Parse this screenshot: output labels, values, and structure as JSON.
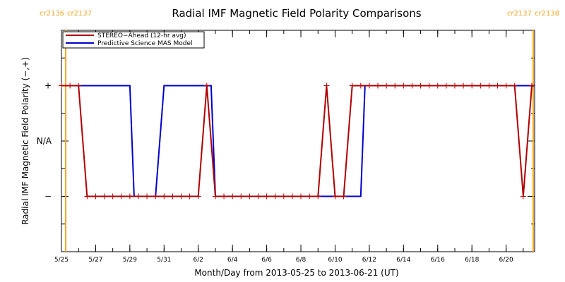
{
  "chart_data": {
    "type": "line",
    "title": "Radial IMF Magnetic Field Polarity Comparisons",
    "xlabel": "Month/Day from 2013-05-25 to 2013-06-21 (UT)",
    "ylabel": "Radial IMF Magnetic Field Polarity (−,+)",
    "xlim": [
      "2013-05-25",
      "2013-06-21T16:00"
    ],
    "ylim": [
      -2,
      2
    ],
    "x_ticks": [
      "5/25",
      "5/27",
      "5/29",
      "5/31",
      "6/2",
      "6/4",
      "6/6",
      "6/8",
      "6/10",
      "6/12",
      "6/14",
      "6/16",
      "6/18",
      "6/20"
    ],
    "y_ticks": [
      {
        "value": 1,
        "label": "+"
      },
      {
        "value": 0,
        "label": "N/A"
      },
      {
        "value": -1,
        "label": "−"
      }
    ],
    "legend": "top-left",
    "grid": false,
    "carrington_rotations": [
      {
        "date": "2013-05-25T06:00",
        "left_label": "cr2136",
        "right_label": "cr2137"
      },
      {
        "date": "2013-06-21T14:00",
        "left_label": "cr2137",
        "right_label": "cr2138"
      }
    ],
    "series": [
      {
        "name": "STEREO−Ahead (12-hr avg)",
        "color": "#b00000",
        "marker": "plus",
        "points": [
          [
            "2013-05-25T00:00",
            1
          ],
          [
            "2013-05-25T12:00",
            1
          ],
          [
            "2013-05-26T00:00",
            1
          ],
          [
            "2013-05-26T12:00",
            -1
          ],
          [
            "2013-05-27T00:00",
            -1
          ],
          [
            "2013-05-27T12:00",
            -1
          ],
          [
            "2013-05-28T00:00",
            -1
          ],
          [
            "2013-05-28T12:00",
            -1
          ],
          [
            "2013-05-29T00:00",
            -1
          ],
          [
            "2013-05-29T12:00",
            -1
          ],
          [
            "2013-05-30T00:00",
            -1
          ],
          [
            "2013-05-30T12:00",
            -1
          ],
          [
            "2013-05-31T00:00",
            -1
          ],
          [
            "2013-05-31T12:00",
            -1
          ],
          [
            "2013-06-01T00:00",
            -1
          ],
          [
            "2013-06-01T12:00",
            -1
          ],
          [
            "2013-06-02T00:00",
            -1
          ],
          [
            "2013-06-02T12:00",
            1
          ],
          [
            "2013-06-03T00:00",
            -1
          ],
          [
            "2013-06-03T12:00",
            -1
          ],
          [
            "2013-06-04T00:00",
            -1
          ],
          [
            "2013-06-04T12:00",
            -1
          ],
          [
            "2013-06-05T00:00",
            -1
          ],
          [
            "2013-06-05T12:00",
            -1
          ],
          [
            "2013-06-06T00:00",
            -1
          ],
          [
            "2013-06-06T12:00",
            -1
          ],
          [
            "2013-06-07T00:00",
            -1
          ],
          [
            "2013-06-07T12:00",
            -1
          ],
          [
            "2013-06-08T00:00",
            -1
          ],
          [
            "2013-06-08T12:00",
            -1
          ],
          [
            "2013-06-09T00:00",
            -1
          ],
          [
            "2013-06-09T12:00",
            1
          ],
          [
            "2013-06-10T00:00",
            -1
          ],
          [
            "2013-06-10T12:00",
            -1
          ],
          [
            "2013-06-11T00:00",
            1
          ],
          [
            "2013-06-11T12:00",
            1
          ],
          [
            "2013-06-12T00:00",
            1
          ],
          [
            "2013-06-12T12:00",
            1
          ],
          [
            "2013-06-13T00:00",
            1
          ],
          [
            "2013-06-13T12:00",
            1
          ],
          [
            "2013-06-14T00:00",
            1
          ],
          [
            "2013-06-14T12:00",
            1
          ],
          [
            "2013-06-15T00:00",
            1
          ],
          [
            "2013-06-15T12:00",
            1
          ],
          [
            "2013-06-16T00:00",
            1
          ],
          [
            "2013-06-16T12:00",
            1
          ],
          [
            "2013-06-17T00:00",
            1
          ],
          [
            "2013-06-17T12:00",
            1
          ],
          [
            "2013-06-18T00:00",
            1
          ],
          [
            "2013-06-18T12:00",
            1
          ],
          [
            "2013-06-19T00:00",
            1
          ],
          [
            "2013-06-19T12:00",
            1
          ],
          [
            "2013-06-20T00:00",
            1
          ],
          [
            "2013-06-20T12:00",
            1
          ],
          [
            "2013-06-21T00:00",
            -1
          ],
          [
            "2013-06-21T12:00",
            1
          ]
        ]
      },
      {
        "name": "Predictive Science MAS Model",
        "color": "#0000cc",
        "marker": "none",
        "points": [
          [
            "2013-05-25T00:00",
            1
          ],
          [
            "2013-05-29T00:00",
            1
          ],
          [
            "2013-05-29T06:00",
            -1
          ],
          [
            "2013-05-30T12:00",
            -1
          ],
          [
            "2013-05-31T00:00",
            1
          ],
          [
            "2013-06-02T18:00",
            1
          ],
          [
            "2013-06-03T00:00",
            -1
          ],
          [
            "2013-06-11T12:00",
            -1
          ],
          [
            "2013-06-11T18:00",
            1
          ],
          [
            "2013-06-21T16:00",
            1
          ]
        ]
      }
    ]
  }
}
